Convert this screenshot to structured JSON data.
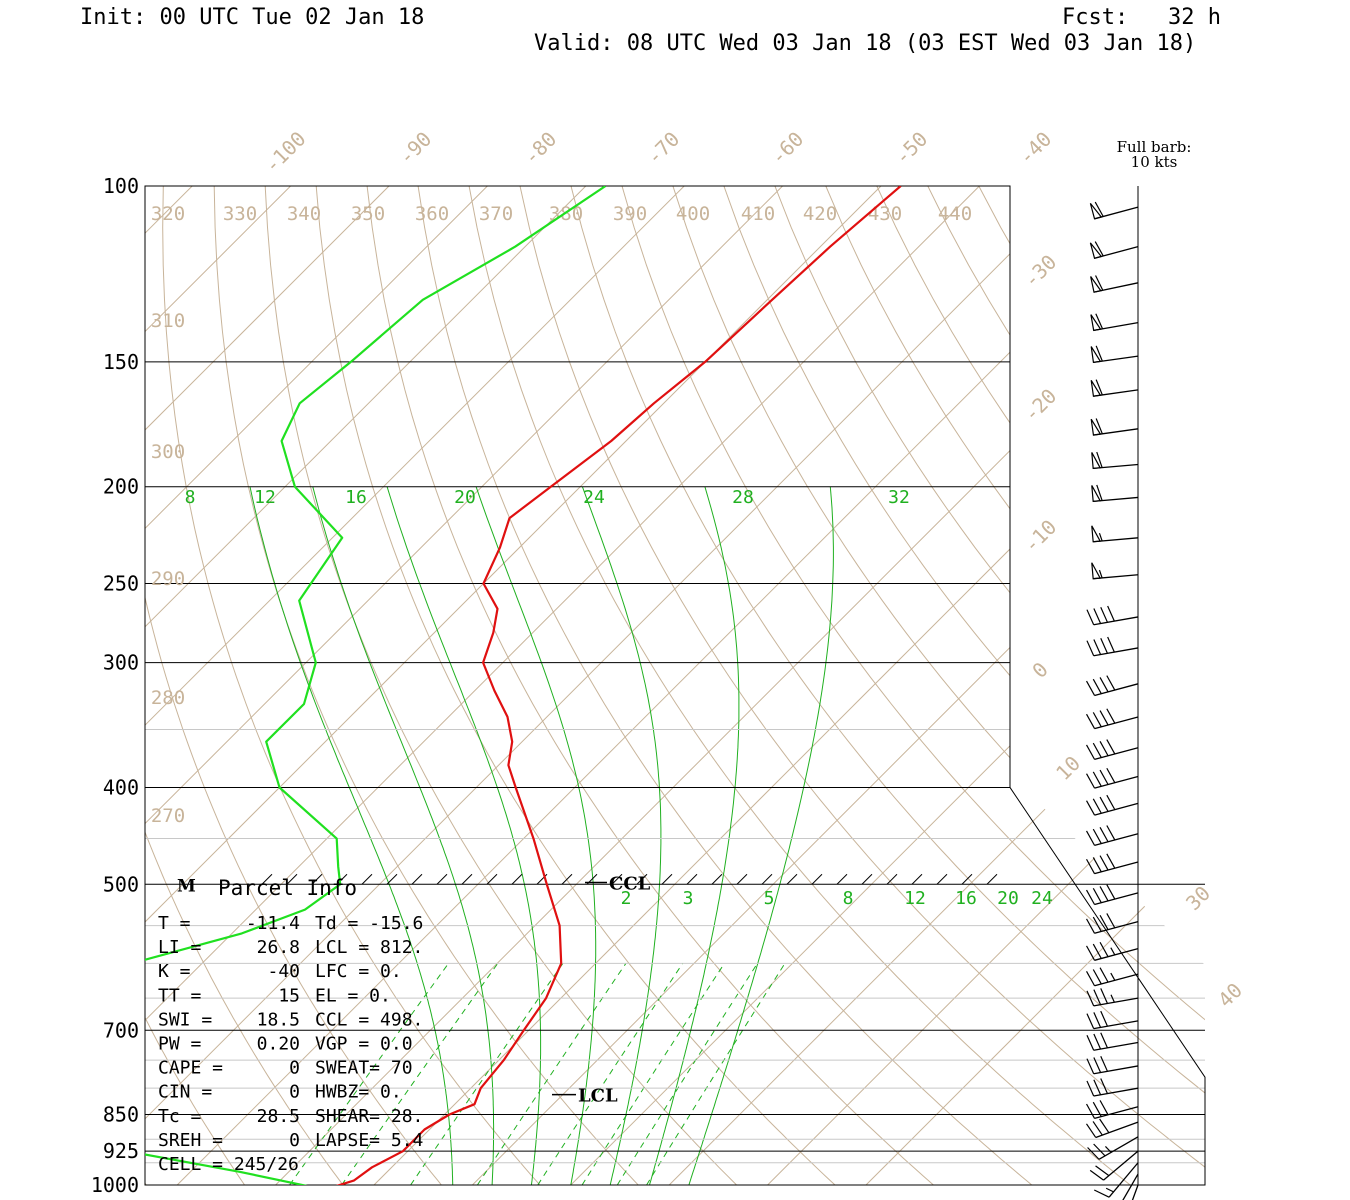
{
  "header": {
    "init": "Init: 00 UTC Tue 02 Jan 18",
    "fcst": "Fcst:   32 h",
    "valid": "Valid: 08 UTC Wed 03 Jan 18 (03 EST Wed 03 Jan 18)"
  },
  "colors": {
    "temperature": "#e01010",
    "dewpoint": "#20e020",
    "isotherm": "#c8b49a",
    "mixing_ratio": "#20b020",
    "moist_adiabat": "#20b020",
    "isobar": "#000000"
  },
  "chart_data": {
    "type": "skew-t",
    "y_axis": {
      "scale": "log-pressure",
      "pressure_labels": [
        "100",
        "150",
        "200",
        "250",
        "300",
        "400",
        "500",
        "700",
        "850",
        "925",
        "1000"
      ]
    },
    "isotherm_labels": [
      "-100",
      "-90",
      "-80",
      "-70",
      "-60",
      "-50",
      "-40",
      "-30",
      "-20",
      "-10",
      "0",
      "10",
      "30",
      "40"
    ],
    "theta_labels": [
      "320",
      "330",
      "340",
      "350",
      "360",
      "370",
      "380",
      "390",
      "400",
      "410",
      "420",
      "430",
      "440",
      "310",
      "300",
      "290",
      "280",
      "270"
    ],
    "theta_e_labels": [
      "8",
      "12",
      "16",
      "20",
      "24",
      "28",
      "32"
    ],
    "mixing_ratio_labels": [
      "2",
      "3",
      "5",
      "8",
      "12",
      "16",
      "20",
      "24"
    ],
    "series": [
      {
        "role": "temperature",
        "points": [
          [
            100,
            -48
          ],
          [
            115,
            -49
          ],
          [
            130,
            -49.5
          ],
          [
            150,
            -50
          ],
          [
            165,
            -51
          ],
          [
            180,
            -51.5
          ],
          [
            200,
            -53
          ],
          [
            215,
            -54
          ],
          [
            230,
            -52
          ],
          [
            250,
            -50
          ],
          [
            265,
            -46
          ],
          [
            280,
            -44
          ],
          [
            300,
            -42
          ],
          [
            320,
            -38
          ],
          [
            340,
            -34
          ],
          [
            360,
            -31
          ],
          [
            380,
            -29
          ],
          [
            400,
            -26
          ],
          [
            450,
            -19
          ],
          [
            500,
            -13
          ],
          [
            550,
            -7.5
          ],
          [
            600,
            -3.5
          ],
          [
            650,
            -1.5
          ],
          [
            700,
            -0.5
          ],
          [
            750,
            0.5
          ],
          [
            800,
            1
          ],
          [
            830,
            2
          ],
          [
            850,
            0.5
          ],
          [
            880,
            -0.5
          ],
          [
            925,
            -0.5
          ],
          [
            960,
            -2
          ],
          [
            990,
            -2.5
          ],
          [
            1005,
            -4
          ]
        ]
      },
      {
        "role": "dewpoint",
        "points": [
          [
            100,
            -78
          ],
          [
            115,
            -81
          ],
          [
            130,
            -85
          ],
          [
            150,
            -86
          ],
          [
            165,
            -87
          ],
          [
            180,
            -85
          ],
          [
            200,
            -79
          ],
          [
            225,
            -69
          ],
          [
            260,
            -67
          ],
          [
            300,
            -59
          ],
          [
            330,
            -56
          ],
          [
            360,
            -56
          ],
          [
            400,
            -50
          ],
          [
            450,
            -39
          ],
          [
            480,
            -36
          ],
          [
            500,
            -34
          ],
          [
            530,
            -35
          ],
          [
            560,
            -39
          ],
          [
            620,
            -51
          ],
          [
            660,
            -55
          ],
          [
            700,
            -50
          ],
          [
            760,
            -44
          ],
          [
            830,
            -39
          ],
          [
            880,
            -34
          ],
          [
            930,
            -27
          ],
          [
            970,
            -15
          ],
          [
            1005,
            -6
          ]
        ]
      }
    ],
    "wind_barbs": [
      {
        "p": 105,
        "dir": 255,
        "kt": 60
      },
      {
        "p": 115,
        "dir": 255,
        "kt": 60
      },
      {
        "p": 125,
        "dir": 258,
        "kt": 60
      },
      {
        "p": 137,
        "dir": 260,
        "kt": 60
      },
      {
        "p": 148,
        "dir": 262,
        "kt": 60
      },
      {
        "p": 160,
        "dir": 262,
        "kt": 60
      },
      {
        "p": 175,
        "dir": 262,
        "kt": 60
      },
      {
        "p": 190,
        "dir": 265,
        "kt": 60
      },
      {
        "p": 205,
        "dir": 265,
        "kt": 60
      },
      {
        "p": 225,
        "dir": 265,
        "kt": 55
      },
      {
        "p": 245,
        "dir": 265,
        "kt": 55
      },
      {
        "p": 270,
        "dir": 260,
        "kt": 40
      },
      {
        "p": 290,
        "dir": 260,
        "kt": 40
      },
      {
        "p": 315,
        "dir": 255,
        "kt": 40
      },
      {
        "p": 340,
        "dir": 255,
        "kt": 40
      },
      {
        "p": 365,
        "dir": 255,
        "kt": 40
      },
      {
        "p": 390,
        "dir": 255,
        "kt": 40
      },
      {
        "p": 415,
        "dir": 255,
        "kt": 40
      },
      {
        "p": 445,
        "dir": 255,
        "kt": 40
      },
      {
        "p": 475,
        "dir": 255,
        "kt": 40
      },
      {
        "p": 510,
        "dir": 255,
        "kt": 40
      },
      {
        "p": 545,
        "dir": 255,
        "kt": 40
      },
      {
        "p": 580,
        "dir": 255,
        "kt": 35
      },
      {
        "p": 615,
        "dir": 255,
        "kt": 35
      },
      {
        "p": 650,
        "dir": 260,
        "kt": 35
      },
      {
        "p": 685,
        "dir": 260,
        "kt": 30
      },
      {
        "p": 720,
        "dir": 260,
        "kt": 30
      },
      {
        "p": 760,
        "dir": 260,
        "kt": 30
      },
      {
        "p": 800,
        "dir": 260,
        "kt": 30
      },
      {
        "p": 835,
        "dir": 255,
        "kt": 30
      },
      {
        "p": 865,
        "dir": 250,
        "kt": 30
      },
      {
        "p": 895,
        "dir": 240,
        "kt": 25
      },
      {
        "p": 925,
        "dir": 230,
        "kt": 20
      },
      {
        "p": 950,
        "dir": 220,
        "kt": 15
      },
      {
        "p": 975,
        "dir": 210,
        "kt": 10
      },
      {
        "p": 1000,
        "dir": 200,
        "kt": 10
      }
    ],
    "annotations": {
      "ccl_label": "CCL",
      "ccl_pressure": 498,
      "lcl_label": "LCL",
      "lcl_pressure": 812,
      "m_marker": "M",
      "full_barb_note_line1": "Full barb:",
      "full_barb_note_line2": "10 kts"
    }
  },
  "parcel_info": {
    "title": "Parcel Info",
    "rows": [
      [
        "T  =",
        "-11.4",
        "Td = -15.6"
      ],
      [
        "LI =",
        "26.8",
        "LCL =  812."
      ],
      [
        "K  =",
        "-40",
        "LFC =    0."
      ],
      [
        "TT =",
        "15",
        "EL  =    0."
      ],
      [
        "SWI =",
        "18.5",
        "CCL =  498."
      ],
      [
        "PW =",
        "0.20",
        "VGP =   0.0"
      ],
      [
        "CAPE =",
        "0",
        "SWEAT=   70"
      ],
      [
        "CIN =",
        "0",
        "HWBZ=    0."
      ],
      [
        "Tc =",
        "28.5",
        "SHEAR=  28."
      ],
      [
        "SREH =",
        "0",
        "LAPSE=   5.4"
      ],
      [
        "CELL = 245/26",
        "",
        ""
      ]
    ]
  }
}
